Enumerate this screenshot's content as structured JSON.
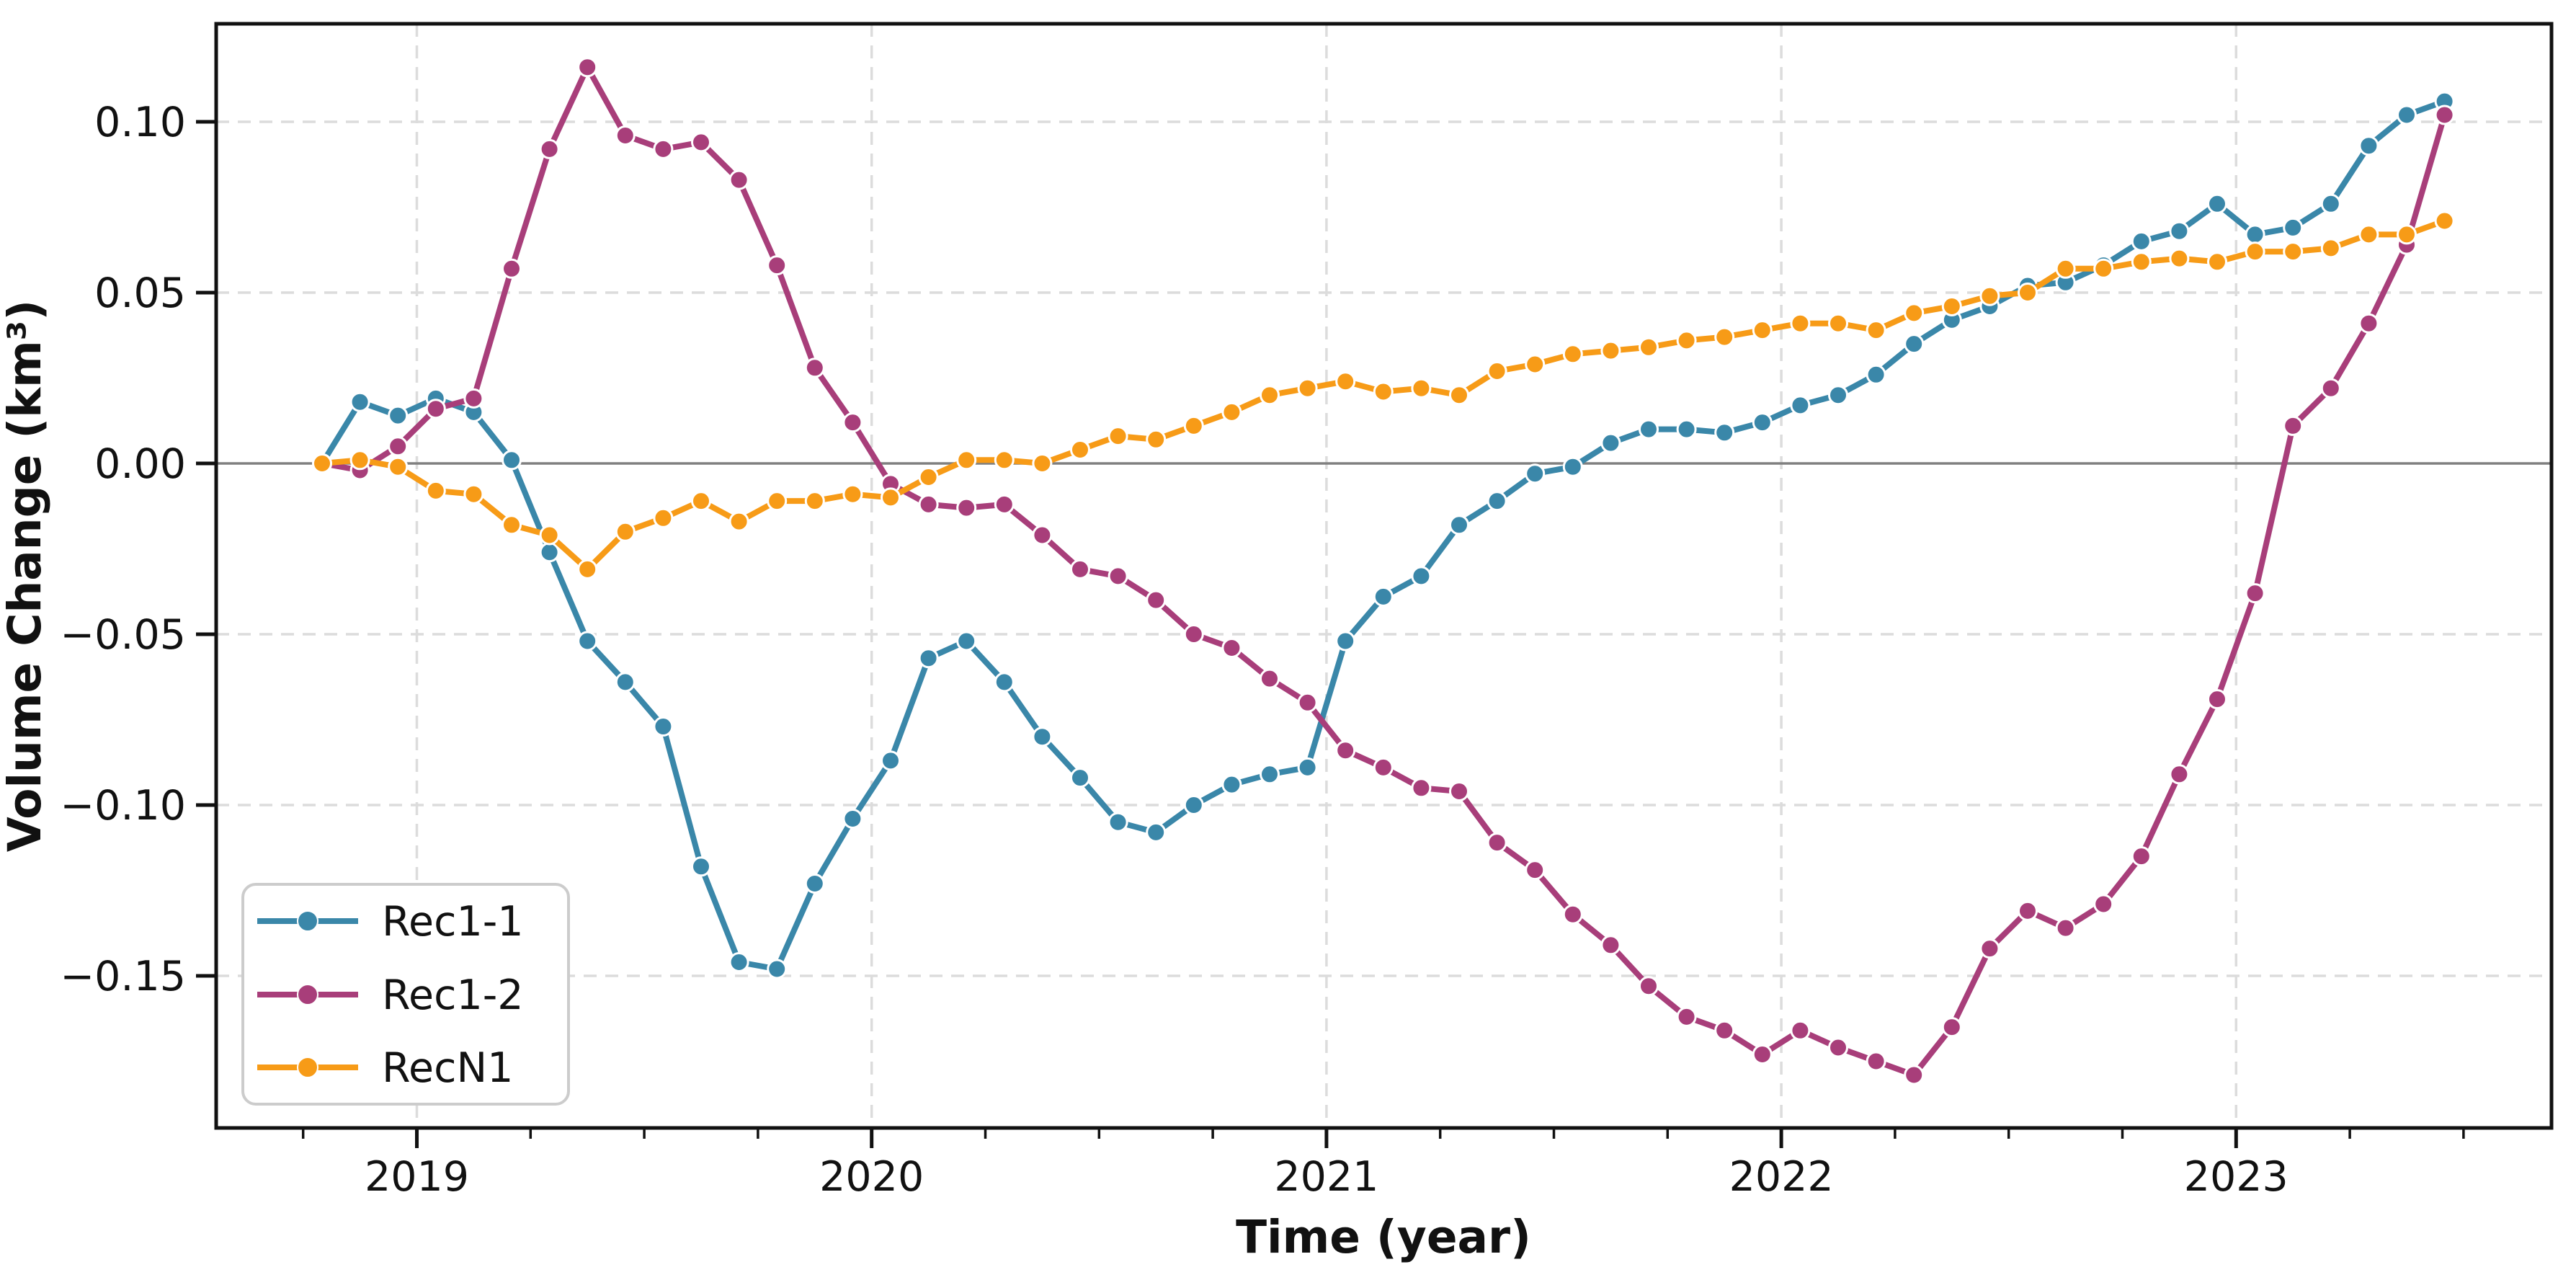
{
  "chart_data": {
    "type": "line",
    "title": "",
    "xlabel": "Time (year)",
    "ylabel": "Volume Change (km³)",
    "grid": true,
    "legend_position": "lower-left",
    "zero_line": true,
    "ylim": [
      -0.195,
      0.129
    ],
    "y_ticks": [
      0.1,
      0.05,
      0.0,
      -0.05,
      -0.1,
      -0.15
    ],
    "y_tick_labels": [
      "0.10",
      "0.05",
      "0.00",
      "−0.05",
      "−0.10",
      "−0.15"
    ],
    "x_tick_labels": [
      "2019",
      "2020",
      "2021",
      "2022",
      "2023"
    ],
    "x": [
      "2018-10",
      "2018-11",
      "2018-12",
      "2019-01",
      "2019-02",
      "2019-03",
      "2019-04",
      "2019-05",
      "2019-06",
      "2019-07",
      "2019-08",
      "2019-09",
      "2019-10",
      "2019-11",
      "2019-12",
      "2020-01",
      "2020-02",
      "2020-03",
      "2020-04",
      "2020-05",
      "2020-06",
      "2020-07",
      "2020-08",
      "2020-09",
      "2020-10",
      "2020-11",
      "2020-12",
      "2021-01",
      "2021-02",
      "2021-03",
      "2021-04",
      "2021-05",
      "2021-06",
      "2021-07",
      "2021-08",
      "2021-09",
      "2021-10",
      "2021-11",
      "2021-12",
      "2022-01",
      "2022-02",
      "2022-03",
      "2022-04",
      "2022-05",
      "2022-06",
      "2022-07",
      "2022-08",
      "2022-09",
      "2022-10",
      "2022-11",
      "2022-12",
      "2023-01",
      "2023-02",
      "2023-03",
      "2023-04",
      "2023-05",
      "2023-06"
    ],
    "series": [
      {
        "name": "Rec1-1",
        "color": "#3a87a9",
        "values": [
          0.0,
          0.018,
          0.014,
          0.019,
          0.015,
          0.001,
          -0.026,
          -0.052,
          -0.064,
          -0.077,
          -0.118,
          -0.146,
          -0.148,
          -0.123,
          -0.104,
          -0.087,
          -0.057,
          -0.052,
          -0.064,
          -0.08,
          -0.092,
          -0.105,
          -0.108,
          -0.1,
          -0.094,
          -0.091,
          -0.089,
          -0.052,
          -0.039,
          -0.033,
          -0.018,
          -0.011,
          -0.003,
          -0.001,
          0.006,
          0.01,
          0.01,
          0.009,
          0.012,
          0.017,
          0.02,
          0.026,
          0.035,
          0.042,
          0.046,
          0.052,
          0.053,
          0.058,
          0.065,
          0.068,
          0.076,
          0.067,
          0.069,
          0.076,
          0.093,
          0.102,
          0.106
        ]
      },
      {
        "name": "Rec1-2",
        "color": "#a83e7a",
        "values": [
          0.0,
          -0.002,
          0.005,
          0.016,
          0.019,
          0.057,
          0.092,
          0.116,
          0.096,
          0.092,
          0.094,
          0.083,
          0.058,
          0.028,
          0.012,
          -0.006,
          -0.012,
          -0.013,
          -0.012,
          -0.021,
          -0.031,
          -0.033,
          -0.04,
          -0.05,
          -0.054,
          -0.063,
          -0.07,
          -0.084,
          -0.089,
          -0.095,
          -0.096,
          -0.111,
          -0.119,
          -0.132,
          -0.141,
          -0.153,
          -0.162,
          -0.166,
          -0.173,
          -0.166,
          -0.171,
          -0.175,
          -0.179,
          -0.165,
          -0.142,
          -0.131,
          -0.136,
          -0.129,
          -0.115,
          -0.091,
          -0.069,
          -0.038,
          0.011,
          0.022,
          0.041,
          0.064,
          0.102
        ]
      },
      {
        "name": "RecN1",
        "color": "#f79b17",
        "values": [
          0.0,
          0.001,
          -0.001,
          -0.008,
          -0.009,
          -0.018,
          -0.021,
          -0.031,
          -0.02,
          -0.016,
          -0.011,
          -0.017,
          -0.011,
          -0.011,
          -0.009,
          -0.01,
          -0.004,
          0.001,
          0.001,
          0.0,
          0.004,
          0.008,
          0.007,
          0.011,
          0.015,
          0.02,
          0.022,
          0.024,
          0.021,
          0.022,
          0.02,
          0.027,
          0.029,
          0.032,
          0.033,
          0.034,
          0.036,
          0.037,
          0.039,
          0.041,
          0.041,
          0.039,
          0.044,
          0.046,
          0.049,
          0.05,
          0.057,
          0.057,
          0.059,
          0.06,
          0.059,
          0.062,
          0.062,
          0.063,
          0.067,
          0.067,
          0.071
        ]
      }
    ],
    "colors": {
      "spine": "#111111",
      "grid": "#dcdcdc",
      "zero_line": "#808080",
      "background": "#ffffff",
      "legend_border": "#cccccc"
    }
  }
}
